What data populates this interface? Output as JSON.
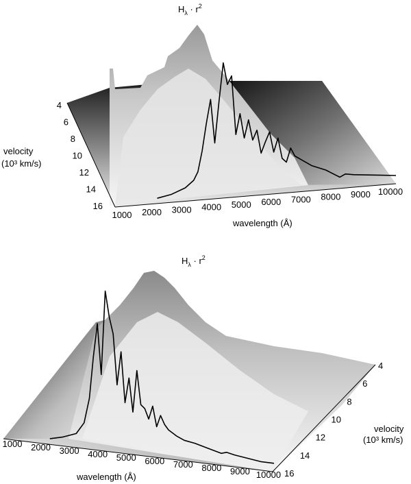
{
  "chart_data": [
    {
      "type": "surface",
      "title": "Hλ · r²",
      "title_main": "H",
      "title_sub": "λ",
      "title_tail": " · r",
      "title_sup": "2",
      "xlabel": "wavelength (Å)",
      "ylabel_line1": "velocity",
      "ylabel_line2": "(10³ km/s)",
      "x_ticks": [
        "1000",
        "2000",
        "3000",
        "4000",
        "5000",
        "6000",
        "7000",
        "8000",
        "9000",
        "10000"
      ],
      "y_ticks": [
        "4",
        "6",
        "8",
        "10",
        "12",
        "14",
        "16"
      ],
      "xlim": [
        0,
        10000
      ],
      "ylim": [
        4,
        16
      ],
      "colormap": "grayscale",
      "overlay_spectrum": {
        "x": [
          1500,
          2000,
          2500,
          2800,
          2950,
          3100,
          3250,
          3400,
          3550,
          3700,
          3850,
          4000,
          4150,
          4300,
          4450,
          4600,
          4750,
          4900,
          5050,
          5200,
          5350,
          5500,
          5650,
          5800,
          5950,
          6100,
          6250,
          6400,
          6700,
          7000,
          7500,
          8000,
          8200,
          8500,
          9000,
          9500,
          10000
        ],
        "y": [
          0.03,
          0.05,
          0.09,
          0.14,
          0.2,
          0.35,
          0.55,
          0.72,
          0.4,
          0.7,
          0.98,
          0.82,
          0.88,
          0.45,
          0.6,
          0.42,
          0.55,
          0.4,
          0.47,
          0.3,
          0.38,
          0.45,
          0.3,
          0.4,
          0.25,
          0.22,
          0.32,
          0.26,
          0.22,
          0.18,
          0.14,
          0.08,
          0.1,
          0.09,
          0.08,
          0.07,
          0.06
        ]
      }
    },
    {
      "type": "surface",
      "title": "Hλ · r²",
      "title_main": "H",
      "title_sub": "λ",
      "title_tail": " · r",
      "title_sup": "2",
      "xlabel": "wavelength (Å)",
      "ylabel_line1": "velocity",
      "ylabel_line2": "(10³ km/s)",
      "x_ticks": [
        "1000",
        "2000",
        "3000",
        "4000",
        "5000",
        "6000",
        "7000",
        "8000",
        "9000",
        "10000"
      ],
      "y_ticks": [
        "4",
        "6",
        "8",
        "10",
        "12",
        "14",
        "16"
      ],
      "xlim": [
        0,
        10000
      ],
      "ylim": [
        4,
        16
      ],
      "colormap": "grayscale",
      "overlay_spectrum": {
        "x": [
          1500,
          2000,
          2500,
          2800,
          3000,
          3150,
          3300,
          3450,
          3600,
          3750,
          3900,
          4050,
          4200,
          4350,
          4500,
          4650,
          4800,
          4950,
          5100,
          5250,
          5400,
          5550,
          5700,
          5850,
          6000,
          6300,
          6600,
          7000,
          7500,
          8000,
          8200,
          8500,
          9000,
          9500,
          10000
        ],
        "y": [
          0.03,
          0.05,
          0.08,
          0.15,
          0.3,
          0.55,
          0.75,
          0.45,
          0.95,
          0.8,
          0.7,
          0.4,
          0.6,
          0.3,
          0.45,
          0.25,
          0.5,
          0.3,
          0.28,
          0.22,
          0.3,
          0.18,
          0.25,
          0.2,
          0.17,
          0.14,
          0.12,
          0.11,
          0.09,
          0.07,
          0.08,
          0.07,
          0.06,
          0.05,
          0.05
        ]
      }
    }
  ]
}
